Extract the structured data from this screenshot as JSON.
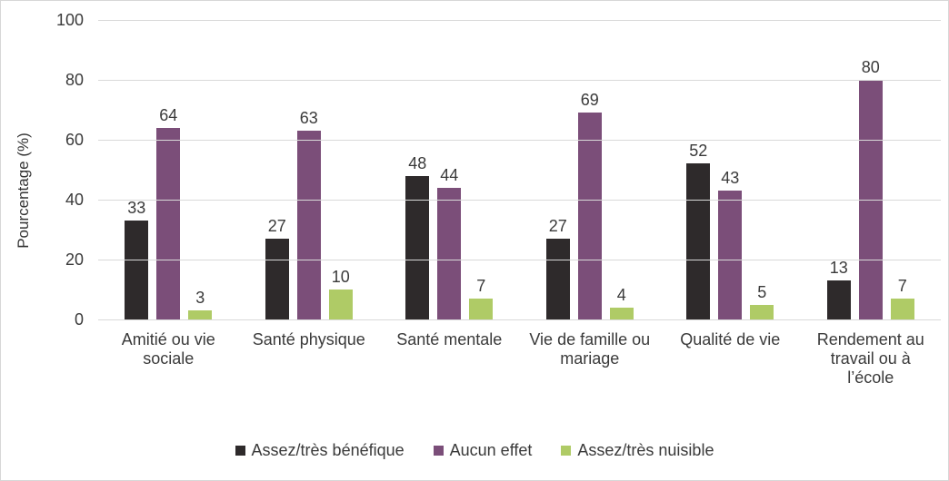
{
  "chart_data": {
    "type": "bar",
    "title": "",
    "xlabel": "",
    "ylabel": "Pourcentage (%)",
    "ylim": [
      0,
      100
    ],
    "yticks": [
      0,
      20,
      40,
      60,
      80,
      100
    ],
    "grid": true,
    "gridline_color": "#d9d9d9",
    "legend_position": "bottom",
    "categories": [
      "Amitié ou vie sociale",
      "Santé physique",
      "Santé mentale",
      "Vie de famille ou mariage",
      "Qualité de vie",
      "Rendement au travail ou à l’école"
    ],
    "series": [
      {
        "name": "Assez/très bénéfique",
        "color": "#2e2a2b",
        "values": [
          33,
          27,
          48,
          27,
          52,
          13
        ]
      },
      {
        "name": "Aucun effet",
        "color": "#7b4e79",
        "values": [
          64,
          63,
          44,
          69,
          43,
          80
        ]
      },
      {
        "name": "Assez/très nuisible",
        "color": "#afcb66",
        "values": [
          3,
          10,
          7,
          4,
          5,
          7
        ]
      }
    ]
  }
}
